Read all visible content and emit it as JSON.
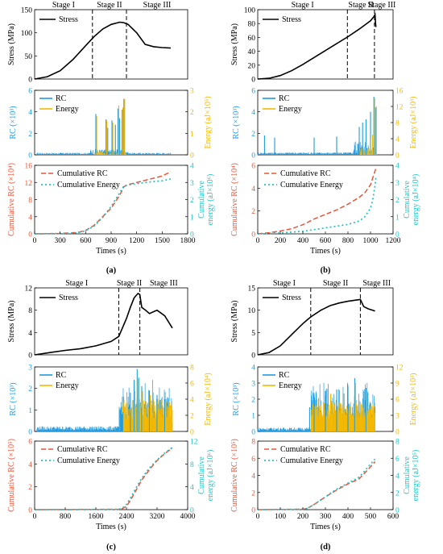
{
  "colors": {
    "stress": "#000000",
    "rc": "#1e9be0",
    "energy": "#f5b800",
    "cum_rc": "#e8553a",
    "cum_energy": "#20c2c2"
  },
  "chart_data": [
    {
      "panel": "(a)",
      "type": "line",
      "x_label": "Times (s)",
      "x_ticks": [
        0,
        300,
        600,
        900,
        1200,
        1500,
        1800
      ],
      "xlim": [
        0,
        1800
      ],
      "stages": {
        "labels": [
          "Stage I",
          "Stage II",
          "Stage III"
        ],
        "boundaries": [
          680,
          1080
        ]
      },
      "stress": {
        "ylabel": "Stress (MPa)",
        "ylim": [
          0,
          150
        ],
        "ticks": [
          0,
          50,
          100,
          150
        ],
        "legend": "Stress",
        "x": [
          0,
          150,
          300,
          450,
          600,
          700,
          800,
          900,
          1000,
          1050,
          1100,
          1200,
          1300,
          1400,
          1500,
          1600
        ],
        "y": [
          0,
          5,
          18,
          42,
          72,
          92,
          108,
          118,
          123,
          122,
          118,
          100,
          75,
          70,
          68,
          67
        ]
      },
      "rc": {
        "ylabel": "RC (×10³)",
        "ylim": [
          0,
          6
        ],
        "ticks": [
          0,
          2,
          4,
          6
        ],
        "legend": "RC",
        "energy_ylabel": "Energy (aJ×10⁵)",
        "energy_ylim": [
          0,
          3
        ],
        "energy_ticks": [
          0,
          1,
          2,
          3
        ],
        "energy_legend": "Energy",
        "t_start": 30,
        "t_end": 1600,
        "bursts": [
          [
            720,
            3.8
          ],
          [
            840,
            3.3
          ],
          [
            860,
            2.5
          ],
          [
            910,
            3.2
          ],
          [
            980,
            4.3
          ],
          [
            1000,
            3.4
          ],
          [
            1030,
            4.2
          ],
          [
            1050,
            5.2
          ],
          [
            950,
            2.8
          ]
        ],
        "energy_bursts": [
          [
            720,
            1.8
          ],
          [
            840,
            1.6
          ],
          [
            910,
            1.5
          ],
          [
            980,
            2.3
          ],
          [
            1030,
            2.2
          ],
          [
            1050,
            2.6
          ]
        ]
      },
      "cum": {
        "ylabel": "Cumulative RC (×10⁴)",
        "ylim": [
          0,
          16
        ],
        "ticks": [
          0,
          4,
          8,
          12,
          16
        ],
        "energy_ylabel": "Cumulative energy (aJ×10⁶)",
        "energy_ylim": [
          0,
          4
        ],
        "energy_ticks": [
          0,
          1,
          2,
          3,
          4
        ],
        "legend_rc": "Cumulative RC",
        "legend_energy": "Cumulative Energy",
        "rc_x": [
          0,
          300,
          500,
          600,
          700,
          800,
          900,
          1000,
          1050,
          1100,
          1300,
          1500,
          1600
        ],
        "rc_y": [
          0,
          0.1,
          0.3,
          0.8,
          2,
          4,
          6,
          9,
          11,
          11.5,
          12.5,
          13.5,
          14.5
        ],
        "en_x": [
          0,
          300,
          500,
          600,
          700,
          800,
          900,
          1000,
          1050,
          1100,
          1300,
          1500,
          1600
        ],
        "en_y": [
          0,
          0.02,
          0.06,
          0.18,
          0.45,
          0.95,
          1.6,
          2.4,
          2.8,
          2.85,
          3,
          3.1,
          3.2
        ]
      }
    },
    {
      "panel": "(b)",
      "type": "line",
      "x_label": "Times (s)",
      "x_ticks": [
        0,
        200,
        400,
        600,
        800,
        1000,
        1200
      ],
      "xlim": [
        0,
        1200
      ],
      "stages": {
        "labels": [
          "Stage I",
          "Stage II",
          "Stage III"
        ],
        "boundaries": [
          795,
          1035
        ]
      },
      "stress": {
        "ylabel": "Stress (MPa)",
        "ylim": [
          0,
          100
        ],
        "ticks": [
          0,
          20,
          40,
          60,
          80,
          100
        ],
        "legend": "Stress",
        "x": [
          0,
          100,
          200,
          300,
          400,
          500,
          600,
          700,
          800,
          900,
          1000,
          1030,
          1040,
          1045,
          1048
        ],
        "y": [
          0,
          1,
          5,
          12,
          21,
          31,
          41,
          51,
          61,
          72,
          84,
          90,
          93,
          80,
          75
        ]
      },
      "rc": {
        "ylabel": "RC (×10³)",
        "ylim": [
          0,
          6
        ],
        "ticks": [
          0,
          2,
          4,
          6
        ],
        "legend": "RC",
        "energy_ylabel": "Energy (aJ×10³)",
        "energy_ylim": [
          0,
          16
        ],
        "energy_ticks": [
          0,
          4,
          8,
          12,
          16
        ],
        "energy_legend": "Energy",
        "t_start": 0,
        "t_end": 1050,
        "bursts": [
          [
            60,
            1.8
          ],
          [
            150,
            1.6
          ],
          [
            500,
            1.6
          ],
          [
            700,
            1.7
          ],
          [
            900,
            2.6
          ],
          [
            930,
            3.0
          ],
          [
            960,
            3.3
          ],
          [
            1000,
            4.0
          ],
          [
            1030,
            5.4
          ],
          [
            1045,
            4.4
          ]
        ],
        "energy_bursts": [
          [
            990,
            4
          ],
          [
            1010,
            5
          ],
          [
            1030,
            14
          ],
          [
            1045,
            12
          ]
        ]
      },
      "cum": {
        "ylabel": "Cumulative RC (×10⁴)",
        "ylim": [
          0,
          6
        ],
        "ticks": [
          0,
          2,
          4,
          6
        ],
        "energy_ylabel": "Cumulative energy (aJ×10⁴)",
        "energy_ylim": [
          0,
          4
        ],
        "energy_ticks": [
          0,
          1,
          2,
          3,
          4
        ],
        "legend_rc": "Cumulative RC",
        "legend_energy": "Cumulative Energy",
        "rc_x": [
          0,
          100,
          200,
          300,
          400,
          500,
          600,
          700,
          800,
          900,
          950,
          1000,
          1030,
          1050
        ],
        "rc_y": [
          0,
          0.1,
          0.25,
          0.45,
          0.8,
          1.3,
          1.7,
          2.1,
          2.6,
          3.2,
          3.6,
          4.3,
          5.2,
          5.8
        ],
        "en_x": [
          0,
          200,
          400,
          500,
          600,
          700,
          800,
          900,
          950,
          1000,
          1020,
          1040,
          1050
        ],
        "en_y": [
          0,
          0.05,
          0.15,
          0.25,
          0.35,
          0.45,
          0.55,
          0.75,
          1.0,
          1.5,
          2.0,
          2.8,
          3.4
        ]
      }
    },
    {
      "panel": "(c)",
      "type": "line",
      "x_label": "Times (s)",
      "x_ticks": [
        0,
        800,
        1600,
        2400,
        3200,
        4000
      ],
      "xlim": [
        0,
        4000
      ],
      "stages": {
        "labels": [
          "Stage I",
          "Stage II",
          "Stage III"
        ],
        "boundaries": [
          2200,
          2750
        ]
      },
      "stress": {
        "ylabel": "Stress (MPa)",
        "ylim": [
          0,
          12
        ],
        "ticks": [
          0,
          4,
          8,
          12
        ],
        "legend": "Stress",
        "x": [
          0,
          400,
          800,
          1200,
          1600,
          2000,
          2200,
          2400,
          2500,
          2600,
          2700,
          2750,
          2800,
          2900,
          3000,
          3200,
          3400,
          3600
        ],
        "y": [
          0,
          0.4,
          0.8,
          1.1,
          1.6,
          2.4,
          3.3,
          6.5,
          8.5,
          10.2,
          11,
          10.8,
          8.5,
          8,
          7.4,
          8,
          7,
          4.8
        ]
      },
      "rc": {
        "ylabel": "RC (×10³)",
        "ylim": [
          0,
          3
        ],
        "ticks": [
          0,
          1,
          2,
          3
        ],
        "legend": "RC",
        "energy_ylabel": "Energy (aJ×10⁴)",
        "energy_ylim": [
          0,
          8
        ],
        "energy_ticks": [
          0,
          2,
          4,
          6,
          8
        ],
        "energy_legend": "Energy",
        "t_start": 60,
        "t_end": 3600,
        "bursts": [
          [
            2300,
            0.9
          ],
          [
            2500,
            1.8
          ],
          [
            2600,
            2.4
          ],
          [
            2680,
            2.9
          ],
          [
            2720,
            2.5
          ],
          [
            2800,
            2.1
          ],
          [
            3000,
            1.9
          ],
          [
            3200,
            1.7
          ],
          [
            3400,
            1.5
          ]
        ],
        "energy_bursts": [
          [
            2600,
            5
          ],
          [
            2680,
            6.5
          ],
          [
            2800,
            5
          ],
          [
            3000,
            4.5
          ],
          [
            3200,
            4
          ],
          [
            3400,
            3.5
          ]
        ]
      },
      "cum": {
        "ylabel": "Cumulative RC (×10⁵)",
        "ylim": [
          0,
          6
        ],
        "ticks": [
          0,
          2,
          4,
          6
        ],
        "energy_ylabel": "Cumulative energy (aJ×10⁶)",
        "energy_ylim": [
          0,
          12
        ],
        "energy_ticks": [
          0,
          4,
          8,
          12
        ],
        "legend_rc": "Cumulative RC",
        "legend_energy": "Cumulative Energy",
        "rc_x": [
          0,
          2200,
          2300,
          2400,
          2500,
          2600,
          2700,
          2800,
          3000,
          3200,
          3400,
          3600
        ],
        "rc_y": [
          0,
          0.03,
          0.1,
          0.3,
          0.8,
          1.4,
          2.0,
          2.6,
          3.5,
          4.3,
          4.9,
          5.4
        ],
        "en_x": [
          0,
          2200,
          2300,
          2400,
          2500,
          2600,
          2700,
          2800,
          3000,
          3200,
          3400,
          3600
        ],
        "en_y": [
          0,
          0.05,
          0.3,
          0.9,
          2.0,
          3.2,
          4.4,
          5.5,
          7.3,
          8.7,
          9.9,
          10.9
        ]
      }
    },
    {
      "panel": "(d)",
      "type": "line",
      "x_label": "Times (s)",
      "x_ticks": [
        0,
        100,
        200,
        300,
        400,
        500,
        600
      ],
      "xlim": [
        0,
        600
      ],
      "stages": {
        "labels": [
          "Stage I",
          "Stage II",
          "Stage III"
        ],
        "boundaries": [
          235,
          455
        ]
      },
      "stress": {
        "ylabel": "Stress (MPa)",
        "ylim": [
          0,
          15
        ],
        "ticks": [
          0,
          5,
          10,
          15
        ],
        "legend": "Stress",
        "x": [
          0,
          50,
          100,
          150,
          200,
          235,
          280,
          320,
          360,
          400,
          440,
          455,
          470,
          490,
          510,
          520
        ],
        "y": [
          0,
          0.5,
          2,
          4.5,
          7,
          8.5,
          10,
          11,
          11.6,
          12,
          12.3,
          12.4,
          10.8,
          10.3,
          10,
          9.8
        ]
      },
      "rc": {
        "ylabel": "RC (×10³)",
        "ylim": [
          0,
          4
        ],
        "ticks": [
          0,
          1,
          2,
          3,
          4
        ],
        "legend": "RC",
        "energy_ylabel": "Energy (aJ×10³)",
        "energy_ylim": [
          0,
          12
        ],
        "energy_ticks": [
          0,
          3,
          6,
          9,
          12
        ],
        "energy_legend": "Energy",
        "t_start": 0,
        "t_end": 520,
        "bursts": [
          [
            230,
            1.5
          ],
          [
            250,
            2.3
          ],
          [
            300,
            2.5
          ],
          [
            350,
            2.6
          ],
          [
            400,
            2.8
          ],
          [
            430,
            3.3
          ],
          [
            480,
            2.7
          ]
        ],
        "energy_bursts": [
          [
            260,
            6
          ],
          [
            320,
            7
          ],
          [
            380,
            7
          ],
          [
            430,
            9
          ],
          [
            480,
            7
          ]
        ]
      },
      "cum": {
        "ylabel": "Cumulative RC (×10⁵)",
        "ylim": [
          0,
          8
        ],
        "ticks": [
          0,
          2,
          4,
          6,
          8
        ],
        "energy_ylabel": "Cumulative energy (aJ×10⁵)",
        "energy_ylim": [
          0,
          8
        ],
        "energy_ticks": [
          0,
          2,
          4,
          6,
          8
        ],
        "legend_rc": "Cumulative RC",
        "legend_energy": "Cumulative Energy",
        "rc_x": [
          0,
          200,
          220,
          250,
          300,
          350,
          400,
          450,
          500,
          520
        ],
        "rc_y": [
          0,
          0.05,
          0.15,
          0.6,
          1.5,
          2.3,
          3.0,
          3.6,
          5.0,
          5.6
        ],
        "en_x": [
          0,
          200,
          220,
          250,
          300,
          350,
          400,
          450,
          500,
          520
        ],
        "en_y": [
          0,
          0.05,
          0.15,
          0.6,
          1.5,
          2.4,
          3.1,
          3.8,
          5.3,
          5.9
        ]
      }
    }
  ]
}
